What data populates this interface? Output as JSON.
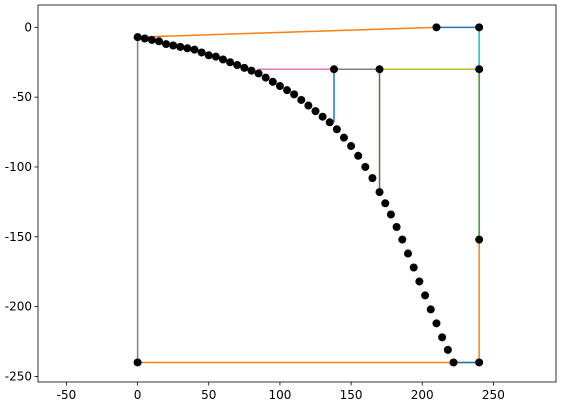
{
  "chart_data": {
    "type": "line",
    "xlim": [
      -70,
      294
    ],
    "ylim": [
      -254,
      16
    ],
    "xticks": [
      -50,
      0,
      50,
      100,
      150,
      200,
      250
    ],
    "yticks": [
      0,
      -50,
      -100,
      -150,
      -200,
      -250
    ],
    "segments": [
      {
        "color": "#ff7f0e",
        "x": [
          0,
          210
        ],
        "values": [
          -7,
          0
        ]
      },
      {
        "color": "#1f77b4",
        "x": [
          210,
          240
        ],
        "values": [
          0,
          0
        ]
      },
      {
        "color": "#17becf",
        "x": [
          240,
          240
        ],
        "values": [
          0,
          -30
        ]
      },
      {
        "color": "#e377c2",
        "x": [
          85,
          138
        ],
        "values": [
          -30,
          -30
        ]
      },
      {
        "color": "#7f7f7f",
        "x": [
          138,
          170
        ],
        "values": [
          -30,
          -30
        ]
      },
      {
        "color": "#bcbd22",
        "x": [
          170,
          240
        ],
        "values": [
          -30,
          -30
        ]
      },
      {
        "color": "#1f77b4",
        "x": [
          138,
          138
        ],
        "values": [
          -30,
          -68
        ]
      },
      {
        "color": "#8c564b",
        "x": [
          170,
          170
        ],
        "values": [
          -30,
          -120
        ]
      },
      {
        "color": "#2ca02c",
        "x": [
          240,
          240
        ],
        "values": [
          -30,
          -152
        ]
      },
      {
        "color": "#ff7f0e",
        "x": [
          240,
          240
        ],
        "values": [
          -152,
          -240
        ]
      },
      {
        "color": "#7f7f7f",
        "x": [
          0,
          0
        ],
        "values": [
          -7,
          -240
        ]
      },
      {
        "color": "#ff7f0e",
        "x": [
          0,
          240
        ],
        "values": [
          -240,
          -240
        ]
      },
      {
        "color": "#1f77b4",
        "x": [
          222,
          240
        ],
        "values": [
          -240,
          -240
        ]
      }
    ],
    "points": {
      "color": "#000000",
      "x": [
        210,
        240,
        138,
        170,
        240,
        240,
        0,
        240,
        0,
        5,
        10,
        15,
        20,
        25,
        30,
        35,
        40,
        45,
        50,
        55,
        60,
        65,
        70,
        75,
        80,
        85,
        90,
        95,
        100,
        105,
        110,
        115,
        120,
        125,
        130,
        135,
        140,
        145,
        150,
        155,
        160,
        165,
        170,
        174,
        178,
        182,
        186,
        190,
        194,
        198,
        202,
        206,
        210,
        214,
        218,
        222
      ],
      "values": [
        0,
        0,
        -30,
        -30,
        -30,
        -152,
        -240,
        -240,
        -7,
        -8,
        -9,
        -10,
        -12,
        -13,
        -14,
        -15,
        -16,
        -18,
        -20,
        -21,
        -23,
        -25,
        -27,
        -29,
        -31,
        -33,
        -36,
        -39,
        -42,
        -45,
        -48,
        -52,
        -56,
        -60,
        -64,
        -68,
        -73,
        -79,
        -85,
        -92,
        -100,
        -108,
        -118,
        -126,
        -134,
        -143,
        -152,
        -162,
        -172,
        -182,
        -192,
        -202,
        -212,
        -222,
        -231,
        -240
      ]
    }
  }
}
